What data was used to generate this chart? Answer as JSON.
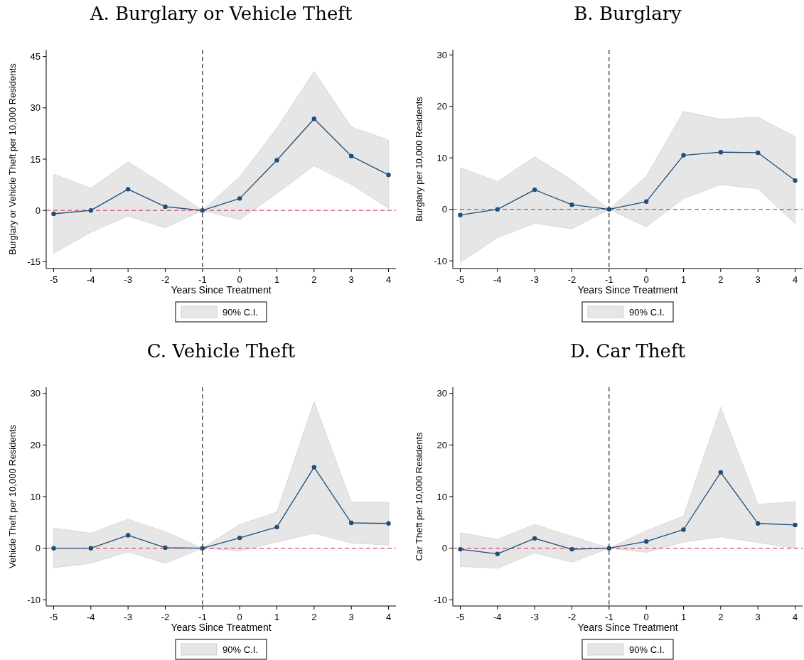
{
  "chart_data": [
    {
      "type": "line",
      "title": "A. Burglary or Vehicle Theft",
      "xlabel": "Years Since Treatment",
      "ylabel": "Burglary or Vehicle Theft per 10,000 Residents",
      "x": [
        -5,
        -4,
        -3,
        -2,
        -1,
        0,
        1,
        2,
        3,
        4
      ],
      "xlim": [
        -5.2,
        4.2
      ],
      "xticks": [
        -5,
        -4,
        -3,
        -2,
        -1,
        0,
        1,
        2,
        3,
        4
      ],
      "ylim": [
        -17,
        47
      ],
      "yticks": [
        -15,
        0,
        15,
        30,
        45
      ],
      "marker": "circle",
      "line_style": "solid",
      "legend": "bottom",
      "series": [
        {
          "name": "90% C.I.",
          "color": "#1f4e79",
          "values": [
            -1.0,
            0,
            6.2,
            1.1,
            0,
            3.5,
            14.7,
            26.8,
            15.9,
            10.4
          ],
          "lower": [
            -12.5,
            -6.4,
            -1.6,
            -5.1,
            0,
            -2.7,
            5.0,
            13.1,
            7.6,
            0.6
          ],
          "upper": [
            10.6,
            6.5,
            14.2,
            7.3,
            0,
            9.8,
            24.1,
            40.6,
            24.4,
            20.6
          ]
        }
      ],
      "ref_lines": [
        {
          "axis": "x",
          "value": -1,
          "color": "#000000",
          "line_style": "dashed"
        },
        {
          "axis": "y",
          "value": 0,
          "color": "#d6456e",
          "line_style": "dashed"
        }
      ]
    },
    {
      "type": "line",
      "title": "B. Burglary",
      "xlabel": "Years Since Treatment",
      "ylabel": "Burglary per 10,000 Residents",
      "x": [
        -5,
        -4,
        -3,
        -2,
        -1,
        0,
        1,
        2,
        3,
        4
      ],
      "xlim": [
        -5.2,
        4.2
      ],
      "xticks": [
        -5,
        -4,
        -3,
        -2,
        -1,
        0,
        1,
        2,
        3,
        4
      ],
      "ylim": [
        -11.5,
        31
      ],
      "yticks": [
        -10,
        0,
        10,
        20,
        30
      ],
      "marker": "circle",
      "line_style": "solid",
      "legend": "bottom",
      "series": [
        {
          "name": "90% C.I.",
          "color": "#1f4e79",
          "values": [
            -1.1,
            0,
            3.8,
            0.9,
            0,
            1.5,
            10.5,
            11.1,
            11.0,
            5.6
          ],
          "lower": [
            -10.3,
            -5.5,
            -2.7,
            -3.8,
            0,
            -3.4,
            2.1,
            4.8,
            4.0,
            -2.8
          ],
          "upper": [
            8.1,
            5.4,
            10.2,
            5.7,
            0,
            6.4,
            19.0,
            17.5,
            17.9,
            14.1
          ]
        }
      ],
      "ref_lines": [
        {
          "axis": "x",
          "value": -1,
          "color": "#000000",
          "line_style": "dashed"
        },
        {
          "axis": "y",
          "value": 0,
          "color": "#d6456e",
          "line_style": "dashed"
        }
      ]
    },
    {
      "type": "line",
      "title": "C. Vehicle Theft",
      "xlabel": "Years Since Treatment",
      "ylabel": "Vehicle Theft per 10,000 Residents",
      "x": [
        -5,
        -4,
        -3,
        -2,
        -1,
        0,
        1,
        2,
        3,
        4
      ],
      "xlim": [
        -5.2,
        4.2
      ],
      "xticks": [
        -5,
        -4,
        -3,
        -2,
        -1,
        0,
        1,
        2,
        3,
        4
      ],
      "ylim": [
        -11.2,
        31.2
      ],
      "yticks": [
        -10,
        0,
        10,
        20,
        30
      ],
      "marker": "circle",
      "line_style": "solid",
      "legend": "bottom",
      "series": [
        {
          "name": "90% C.I.",
          "color": "#1f4e79",
          "values": [
            0,
            0,
            2.5,
            0.1,
            0,
            2.0,
            4.1,
            15.7,
            4.9,
            4.8
          ],
          "lower": [
            -3.8,
            -2.9,
            -0.7,
            -2.9,
            0,
            -0.5,
            1.2,
            2.9,
            1.0,
            0.6
          ],
          "upper": [
            3.9,
            2.9,
            5.6,
            3.2,
            0,
            4.6,
            7.0,
            28.4,
            8.9,
            8.9
          ]
        }
      ],
      "ref_lines": [
        {
          "axis": "x",
          "value": -1,
          "color": "#000000",
          "line_style": "dashed"
        },
        {
          "axis": "y",
          "value": 0,
          "color": "#d6456e",
          "line_style": "dashed"
        }
      ]
    },
    {
      "type": "line",
      "title": "D. Car Theft",
      "xlabel": "Years Since Treatment",
      "ylabel": "Car Theft per 10,000 Residents",
      "x": [
        -5,
        -4,
        -3,
        -2,
        -1,
        0,
        1,
        2,
        3,
        4
      ],
      "xlim": [
        -5.2,
        4.2
      ],
      "xticks": [
        -5,
        -4,
        -3,
        -2,
        -1,
        0,
        1,
        2,
        3,
        4
      ],
      "ylim": [
        -11.2,
        31.2
      ],
      "yticks": [
        -10,
        0,
        10,
        20,
        30
      ],
      "marker": "circle",
      "line_style": "solid",
      "legend": "bottom",
      "series": [
        {
          "name": "90% C.I.",
          "color": "#1f4e79",
          "values": [
            -0.2,
            -1.1,
            1.9,
            -0.2,
            0,
            1.3,
            3.6,
            14.7,
            4.8,
            4.5
          ],
          "lower": [
            -3.5,
            -3.9,
            -0.9,
            -2.7,
            0,
            -0.8,
            1.2,
            2.2,
            1.1,
            0.0
          ],
          "upper": [
            3.0,
            1.7,
            4.6,
            2.3,
            0,
            3.4,
            6.2,
            27.3,
            8.5,
            9.0
          ]
        }
      ],
      "ref_lines": [
        {
          "axis": "x",
          "value": -1,
          "color": "#000000",
          "line_style": "dashed"
        },
        {
          "axis": "y",
          "value": 0,
          "color": "#d6456e",
          "line_style": "dashed"
        }
      ]
    }
  ]
}
